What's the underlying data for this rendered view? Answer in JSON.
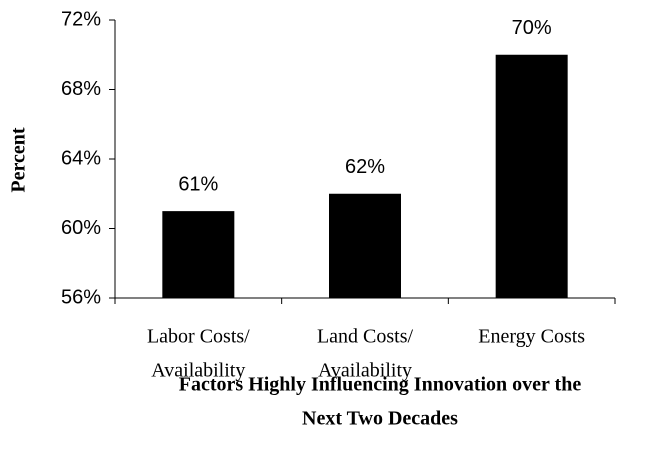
{
  "chart_data": {
    "type": "bar",
    "x_label": [
      "Factors Highly Influencing Innovation over the",
      "Next Two Decades"
    ],
    "y_label": "Percent",
    "categories": [
      [
        "Labor Costs/",
        "Availability"
      ],
      [
        "Land Costs/",
        "Availability"
      ],
      [
        "Energy Costs"
      ]
    ],
    "values": [
      61,
      62,
      70
    ],
    "value_labels": [
      "61%",
      "62%",
      "70%"
    ],
    "color": "#000000",
    "ylim": [
      56,
      72
    ],
    "yticks": [
      {
        "value": 56,
        "label": "56%"
      },
      {
        "value": 60,
        "label": "60%"
      },
      {
        "value": 64,
        "label": "64%"
      },
      {
        "value": 68,
        "label": "68%"
      },
      {
        "value": 72,
        "label": "72%"
      }
    ],
    "grid": false
  }
}
